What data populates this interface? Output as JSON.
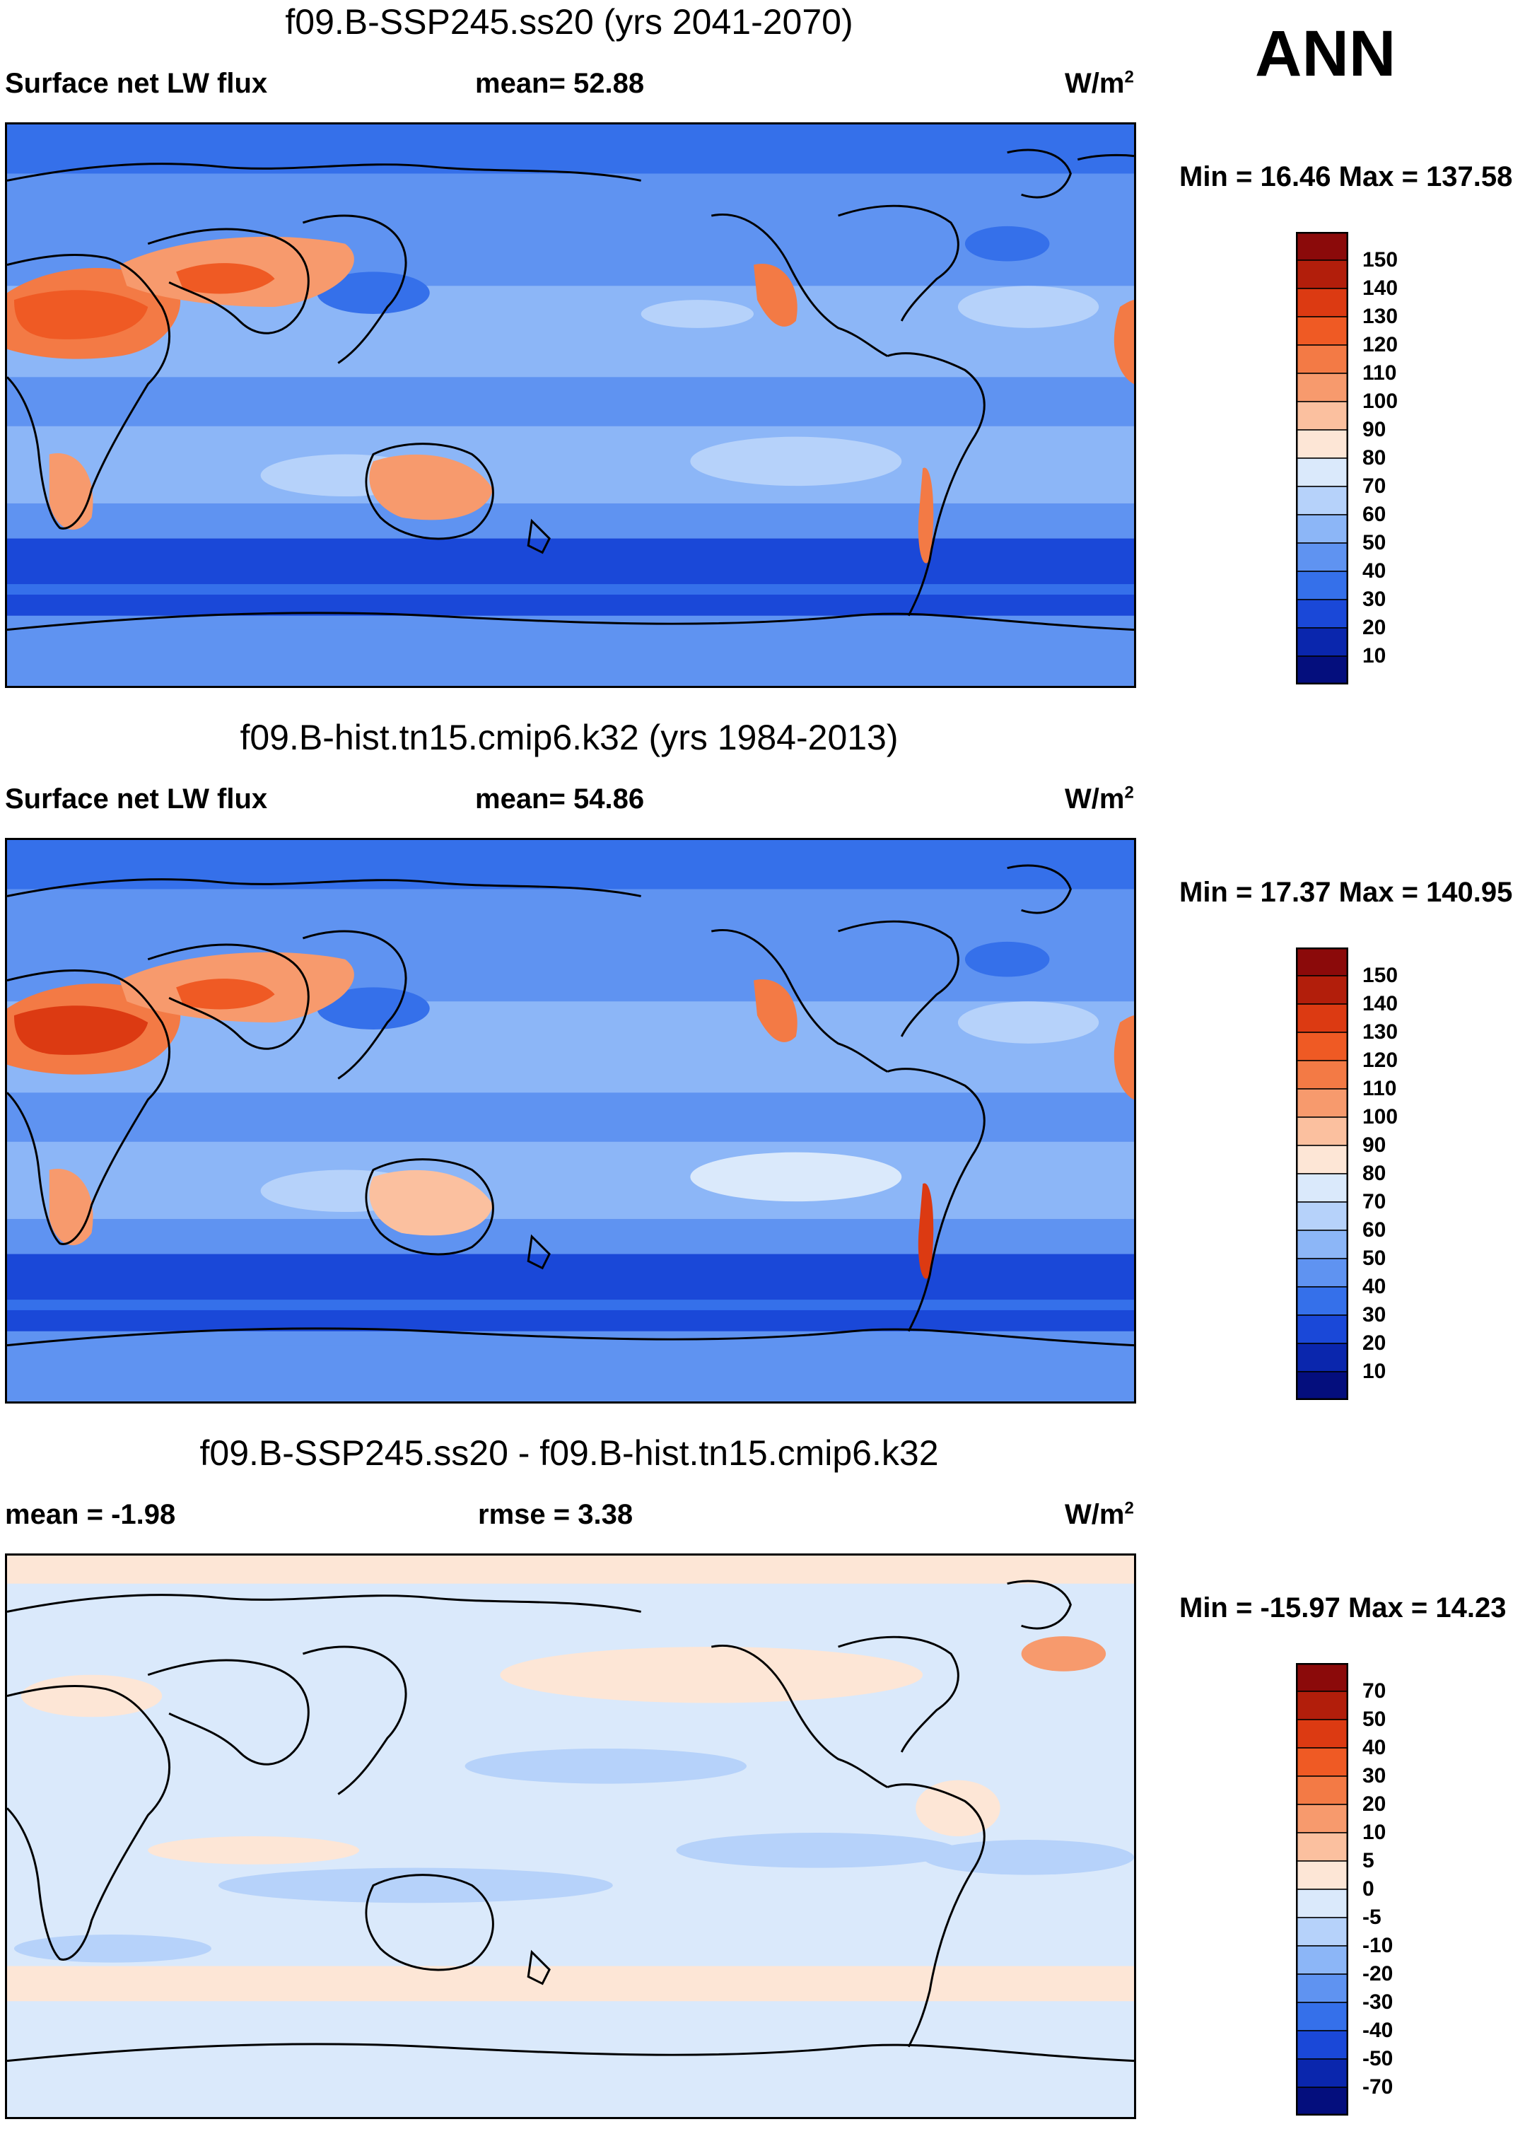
{
  "season": "ANN",
  "units_base": "W/m",
  "units_exp": "2",
  "panels": [
    {
      "title": "f09.B-SSP245.ss20 (yrs 2041-2070)",
      "left_label": "Surface net LW flux",
      "center_label": "mean=  52.88",
      "minmax": "Min =  16.46 Max = 137.58",
      "palette": "abs"
    },
    {
      "title": "f09.B-hist.tn15.cmip6.k32 (yrs 1984-2013)",
      "left_label": "Surface net LW flux",
      "center_label": "mean=  54.86",
      "minmax": "Min =  17.37 Max = 140.95",
      "palette": "abs"
    },
    {
      "title": "f09.B-SSP245.ss20 - f09.B-hist.tn15.cmip6.k32",
      "left_label": "mean =  -1.98",
      "center_label": "rmse =    3.38",
      "minmax": "Min = -15.97 Max =  14.23",
      "palette": "diff"
    }
  ],
  "colorbars": {
    "abs": {
      "levels": [
        "150",
        "140",
        "130",
        "120",
        "110",
        "100",
        "90",
        "80",
        "70",
        "60",
        "50",
        "40",
        "30",
        "20",
        "10"
      ],
      "colors": [
        "#8b0a0a",
        "#b21e0b",
        "#dc3a12",
        "#ef5a24",
        "#f37a45",
        "#f79a6d",
        "#fbc09f",
        "#fde6d6",
        "#dae9fb",
        "#b6d2fa",
        "#8cb6f7",
        "#5f93f1",
        "#3570ea",
        "#1a48d8",
        "#0a26ad",
        "#040e7d"
      ]
    },
    "diff": {
      "levels": [
        "70",
        "50",
        "40",
        "30",
        "20",
        "10",
        "5",
        "0",
        "-5",
        "-10",
        "-20",
        "-30",
        "-40",
        "-50",
        "-70"
      ],
      "colors": [
        "#8b0a0a",
        "#b21e0b",
        "#dc3a12",
        "#ef5a24",
        "#f37a45",
        "#f79a6d",
        "#fbc09f",
        "#fde6d6",
        "#dae9fb",
        "#b6d2fa",
        "#8cb6f7",
        "#5f93f1",
        "#3570ea",
        "#1a48d8",
        "#0a26ad",
        "#040e7d"
      ]
    }
  }
}
